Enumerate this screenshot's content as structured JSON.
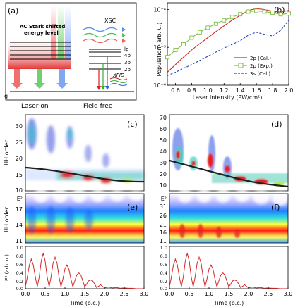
{
  "panel_a": {
    "tag": "(a)",
    "stark_label_1": "AC Stark shifted",
    "stark_label_2": "energy level",
    "xsc": "XSC",
    "xfid": "XFID",
    "level_labels": [
      "lp",
      "4p",
      "3p",
      "2p"
    ],
    "ground": "g",
    "laser_on": "Laser on",
    "field_free": "Field free"
  },
  "panel_b": {
    "tag": "(b)",
    "xlabel": "Laser Intensity (PW/cm²)",
    "ylabel": "Population (arb. u.)",
    "xticks": [
      "0.6",
      "0.8",
      "1.0",
      "1.2",
      "1.4",
      "1.6",
      "1.8",
      "2.0"
    ],
    "yticks": [
      "10⁻⁴",
      "10⁻⁵",
      "10⁻⁶"
    ],
    "legend": [
      "2p (Cal.)",
      "2p (Exp.)",
      "3s (Cal.)"
    ]
  },
  "panel_c": {
    "tag": "(c)",
    "ylabel": "HH order",
    "yticks": [
      "30",
      "25",
      "20",
      "15",
      "10"
    ]
  },
  "panel_d": {
    "tag": "(d)",
    "yticks": [
      "70",
      "60",
      "50",
      "40",
      "30",
      "20",
      "10"
    ]
  },
  "panel_e": {
    "tag": "(e)",
    "ylabel": "HH order",
    "yticks": [
      "E²",
      "17",
      "14",
      "11"
    ]
  },
  "panel_f": {
    "tag": "(f)",
    "yticks": [
      "E²",
      "31",
      "26",
      "21",
      "16",
      "11"
    ]
  },
  "field_panel": {
    "ylabel": "E² (arb. u.)",
    "yticks": [
      "1.0",
      "0.8",
      "0.6",
      "0.4",
      "0.2",
      "0.0"
    ]
  },
  "time_axis": {
    "xlabel": "Time (o.c.)",
    "xticks": [
      "0.0",
      "0.5",
      "1.0",
      "1.5",
      "2.0",
      "2.5",
      "3.0"
    ]
  },
  "colors": {
    "red": "#d62728",
    "green": "#7bc043",
    "blue": "#1f3fbf",
    "black": "#000000"
  },
  "chart_data": [
    {
      "type": "line",
      "panel": "b",
      "x_log_scale": false,
      "y_log_scale": true,
      "xlim": [
        0.5,
        2.0
      ],
      "ylim": [
        1e-06,
        0.00015
      ],
      "series": [
        {
          "name": "2p (Cal.)",
          "x": [
            0.5,
            0.6,
            0.7,
            0.8,
            0.9,
            1.0,
            1.1,
            1.2,
            1.3,
            1.4,
            1.5,
            1.6,
            1.7,
            1.8,
            1.9,
            2.0
          ],
          "values": [
            2.2e-06,
            3.5e-06,
            5.5e-06,
            8.5e-06,
            1.25e-05,
            1.8e-05,
            2.6e-05,
            3.7e-05,
            5.2e-05,
            7e-05,
            9.5e-05,
            0.000105,
            0.0001,
            9e-05,
            8.5e-05,
            9.5e-05
          ]
        },
        {
          "name": "2p (Exp.)",
          "x": [
            0.5,
            0.6,
            0.7,
            0.8,
            0.9,
            1.0,
            1.1,
            1.2,
            1.3,
            1.4,
            1.5,
            1.6,
            1.7,
            1.8,
            1.9,
            2.0
          ],
          "values": [
            5.5e-06,
            8.5e-06,
            1.2e-05,
            1.8e-05,
            2.5e-05,
            3.3e-05,
            4.2e-05,
            5.2e-05,
            6.3e-05,
            7.5e-05,
            8.8e-05,
            9.2e-05,
            8.8e-05,
            8.2e-05,
            7.5e-05,
            7.8e-05
          ]
        },
        {
          "name": "3s (Cal.)",
          "x": [
            0.5,
            0.6,
            0.7,
            0.8,
            0.9,
            1.0,
            1.1,
            1.2,
            1.3,
            1.4,
            1.5,
            1.6,
            1.7,
            1.8,
            1.9,
            2.0
          ],
          "values": [
            1.8e-06,
            2.2e-06,
            2.8e-06,
            3.5e-06,
            4.5e-06,
            5.8e-06,
            7.5e-06,
            9.5e-06,
            1.2e-05,
            1.5e-05,
            2.1e-05,
            2.5e-05,
            2.2e-05,
            2e-05,
            2.8e-05,
            5.2e-05
          ]
        }
      ]
    },
    {
      "type": "line",
      "panel": "field",
      "xlim": [
        0,
        3
      ],
      "ylim": [
        0,
        1
      ],
      "series": [
        {
          "name": "",
          "x": [
            0,
            0.05,
            0.1,
            0.15,
            0.2,
            0.25,
            0.3,
            0.35,
            0.4,
            0.45,
            0.5,
            0.55,
            0.6,
            0.65,
            0.7,
            0.75,
            0.8,
            0.85,
            0.9,
            0.95,
            1.0,
            1.05,
            1.1,
            1.15,
            1.2,
            1.25,
            1.3,
            1.35,
            1.4,
            1.45,
            1.5,
            1.55,
            1.6,
            1.65,
            1.7,
            1.75,
            1.8,
            1.85,
            1.9,
            1.95,
            2.0,
            2.1,
            2.2,
            2.3,
            2.4,
            2.5,
            2.6,
            2.7,
            2.8,
            2.9,
            3.0
          ],
          "values": [
            0.05,
            0.3,
            0.6,
            0.75,
            0.6,
            0.3,
            0.05,
            0.3,
            0.7,
            0.9,
            0.7,
            0.3,
            0.05,
            0.3,
            0.65,
            0.8,
            0.65,
            0.3,
            0.05,
            0.25,
            0.5,
            0.6,
            0.5,
            0.25,
            0.05,
            0.2,
            0.35,
            0.4,
            0.35,
            0.2,
            0.05,
            0.12,
            0.2,
            0.22,
            0.2,
            0.12,
            0.03,
            0.06,
            0.1,
            0.06,
            0.02,
            0.04,
            0.02,
            0.03,
            0.01,
            0.02,
            0.01,
            0.01,
            0.0,
            0.0,
            0.0
          ]
        }
      ]
    }
  ]
}
